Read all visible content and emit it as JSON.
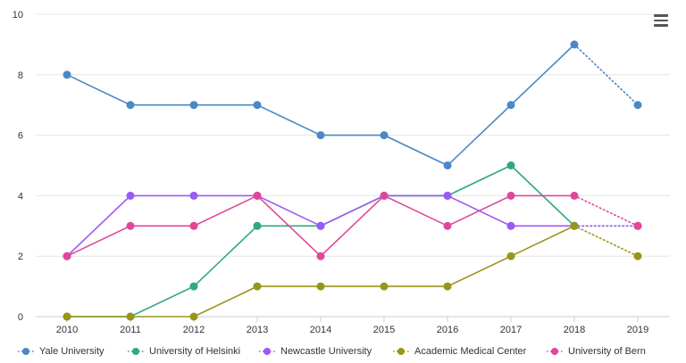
{
  "chart_data": {
    "type": "line",
    "title": "",
    "xlabel": "",
    "ylabel": "",
    "categories": [
      "2010",
      "2011",
      "2012",
      "2013",
      "2014",
      "2015",
      "2016",
      "2017",
      "2018",
      "2019"
    ],
    "ylim": [
      0,
      10
    ],
    "yticks": [
      "0",
      "2",
      "4",
      "6",
      "8",
      "10"
    ],
    "grid": true,
    "legend_position": "bottom",
    "projected_segment": "2018-2019 dotted",
    "series": [
      {
        "name": "Yale University",
        "color": "#4a88c7",
        "values": [
          8,
          7,
          7,
          7,
          6,
          6,
          5,
          7,
          9,
          7
        ]
      },
      {
        "name": "University of Helsinki",
        "color": "#2fa97e",
        "values": [
          0,
          0,
          1,
          3,
          3,
          4,
          4,
          5,
          3,
          3
        ]
      },
      {
        "name": "Newcastle University",
        "color": "#9b59f5",
        "values": [
          2,
          4,
          4,
          4,
          3,
          4,
          4,
          3,
          3,
          3
        ]
      },
      {
        "name": "Academic Medical Center",
        "color": "#98951a",
        "values": [
          0,
          0,
          0,
          1,
          1,
          1,
          1,
          2,
          3,
          2
        ]
      },
      {
        "name": "University of Bern",
        "color": "#e0479a",
        "values": [
          2,
          3,
          3,
          4,
          2,
          4,
          3,
          4,
          4,
          3
        ]
      }
    ]
  },
  "menu": {
    "icon": "hamburger-menu-icon"
  }
}
